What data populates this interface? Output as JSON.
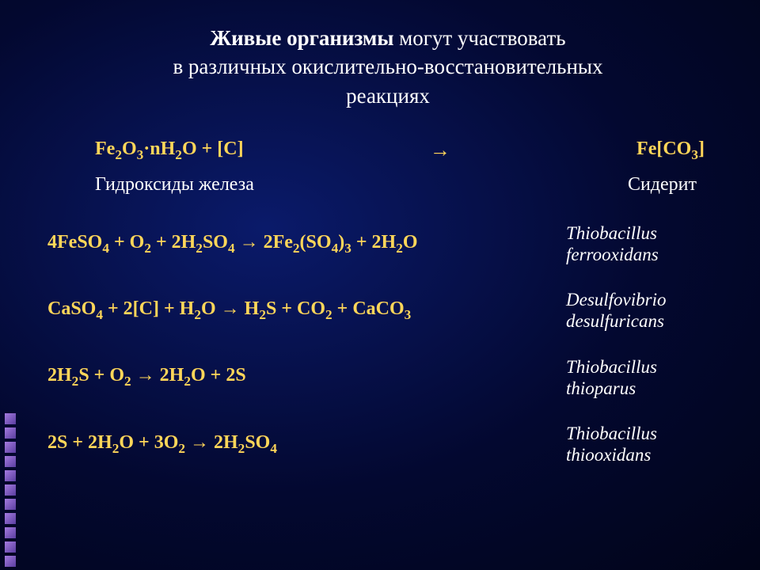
{
  "title": {
    "bold": "Живые организмы",
    "rest1": " могут участвовать",
    "line2": "в различных окислительно-восстановительных",
    "line3": "реакциях"
  },
  "topReaction": {
    "left_html": "Fe<sub>2</sub>O<sub>3</sub>·nH<sub>2</sub>O + [C]",
    "arrow": "→",
    "right_html": "Fe[CO<sub>3</sub>]",
    "leftLabel": "Гидроксиды железа",
    "rightLabel": "Сидерит"
  },
  "reactions": [
    {
      "eq_html": "4FeSO<sub>4</sub> + O<sub>2</sub> + 2H<sub>2</sub>SO<sub>4</sub> → 2Fe<sub>2</sub>(SO<sub>4</sub>)<sub>3</sub> + 2H<sub>2</sub>O",
      "organism_lines": [
        "Thiobacillus",
        "ferrooxidans"
      ]
    },
    {
      "eq_html": "CaSO<sub>4</sub> + 2[C] + H<sub>2</sub>O → H<sub>2</sub>S + CO<sub>2</sub> + CaCO<sub>3</sub>",
      "organism_lines": [
        "Desulfovibrio",
        "desulfuricans"
      ]
    },
    {
      "eq_html": "2H<sub>2</sub>S + O<sub>2</sub> → 2H<sub>2</sub>O + 2S",
      "organism_lines": [
        "Thiobacillus",
        "thioparus"
      ]
    },
    {
      "eq_html": "2S + 2H<sub>2</sub>O + 3O<sub>2</sub> → 2H<sub>2</sub>SO<sub>4</sub>",
      "organism_lines": [
        "Thiobacillus",
        "thiooxidans"
      ]
    }
  ],
  "style": {
    "title_color": "#ffffff",
    "eq_color": "#ffd659",
    "organism_color": "#ffffff",
    "label_color": "#ffffff",
    "bg_gradient_inner": "#0a1a6a",
    "bg_gradient_outer": "#010418",
    "square_color_a": "#a57be0",
    "square_color_b": "#5a3ea0",
    "title_fontsize": 27,
    "eq_fontsize": 24,
    "organism_fontsize": 23,
    "label_fontsize": 24
  },
  "sideSquaresCount": 11
}
